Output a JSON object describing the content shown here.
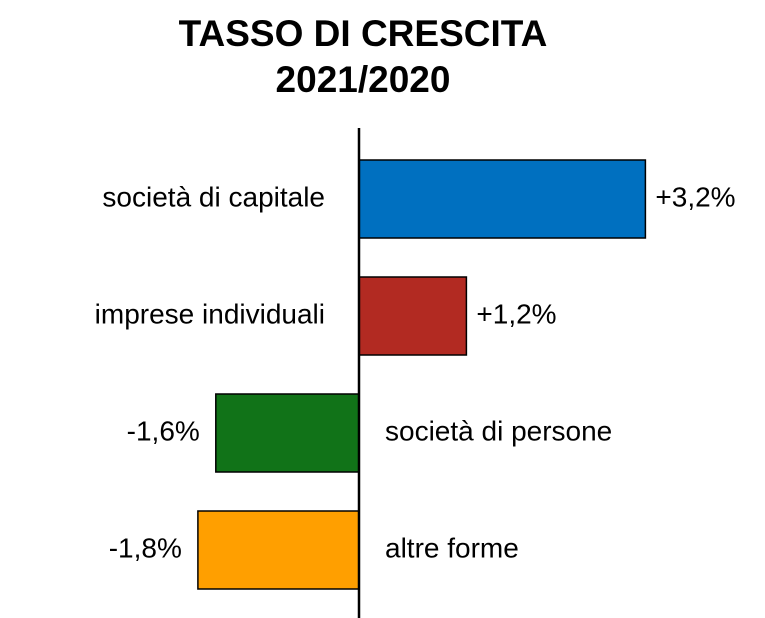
{
  "chart_data": {
    "type": "bar",
    "orientation": "horizontal",
    "title": "TASSO DI CRESCITA",
    "subtitle": "2021/2020",
    "categories": [
      "società di capitale",
      "imprese individuali",
      "società di persone",
      "altre forme"
    ],
    "values": [
      3.2,
      1.2,
      -1.6,
      -1.8
    ],
    "value_labels": [
      "+3,2%",
      "+1,2%",
      "-1,6%",
      "-1,8%"
    ],
    "colors": [
      "#0070c0",
      "#b22a22",
      "#117318",
      "#ff9f00"
    ]
  }
}
